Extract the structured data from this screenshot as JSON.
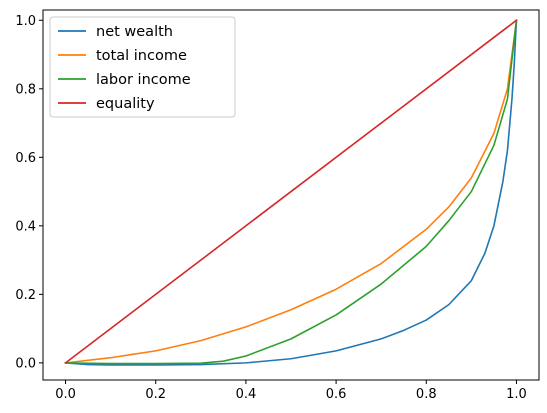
{
  "chart_data": {
    "type": "line",
    "title": "",
    "xlabel": "",
    "ylabel": "",
    "xlim": [
      -0.05,
      1.05
    ],
    "ylim": [
      -0.05,
      1.03
    ],
    "xticks": [
      0.0,
      0.2,
      0.4,
      0.6,
      0.8,
      1.0
    ],
    "xtick_labels": [
      "0.0",
      "0.2",
      "0.4",
      "0.6",
      "0.8",
      "1.0"
    ],
    "yticks": [
      0.0,
      0.2,
      0.4,
      0.6,
      0.8,
      1.0
    ],
    "ytick_labels": [
      "0.0",
      "0.2",
      "0.4",
      "0.6",
      "0.8",
      "1.0"
    ],
    "grid": false,
    "legend_position": "top-left",
    "series": [
      {
        "name": "net wealth",
        "color": "#1f77b4",
        "x": [
          0.0,
          0.05,
          0.1,
          0.2,
          0.3,
          0.4,
          0.5,
          0.6,
          0.7,
          0.75,
          0.8,
          0.85,
          0.9,
          0.93,
          0.95,
          0.97,
          0.98,
          0.99,
          0.995,
          1.0
        ],
        "y": [
          0.0,
          -0.005,
          -0.006,
          -0.006,
          -0.005,
          0.0,
          0.012,
          0.035,
          0.07,
          0.095,
          0.125,
          0.17,
          0.24,
          0.32,
          0.4,
          0.53,
          0.62,
          0.77,
          0.87,
          1.0
        ]
      },
      {
        "name": "total income",
        "color": "#ff7f0e",
        "x": [
          0.0,
          0.1,
          0.2,
          0.3,
          0.4,
          0.5,
          0.6,
          0.7,
          0.8,
          0.85,
          0.9,
          0.95,
          0.98,
          1.0
        ],
        "y": [
          0.0,
          0.015,
          0.035,
          0.065,
          0.105,
          0.155,
          0.215,
          0.29,
          0.39,
          0.455,
          0.54,
          0.67,
          0.8,
          1.0
        ]
      },
      {
        "name": "labor income",
        "color": "#2ca02c",
        "x": [
          0.0,
          0.1,
          0.2,
          0.3,
          0.35,
          0.4,
          0.5,
          0.6,
          0.7,
          0.8,
          0.85,
          0.9,
          0.95,
          0.98,
          1.0
        ],
        "y": [
          0.0,
          -0.002,
          -0.002,
          -0.001,
          0.005,
          0.02,
          0.07,
          0.14,
          0.23,
          0.34,
          0.415,
          0.5,
          0.635,
          0.77,
          1.0
        ]
      },
      {
        "name": "equality",
        "color": "#d62728",
        "x": [
          0.0,
          1.0
        ],
        "y": [
          0.0,
          1.0
        ]
      }
    ]
  }
}
